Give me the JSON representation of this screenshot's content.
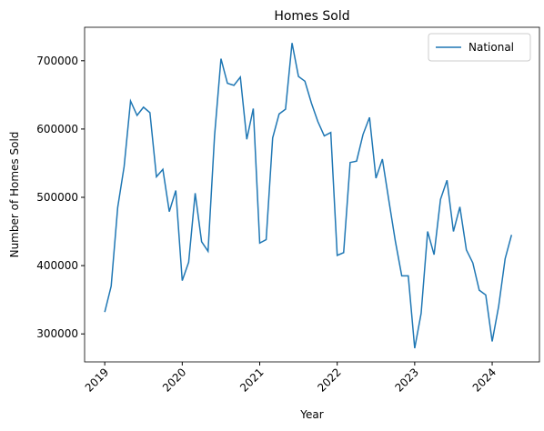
{
  "chart_data": {
    "type": "line",
    "title": "Homes Sold",
    "xlabel": "Year",
    "ylabel": "Number of Homes Sold",
    "x": [
      2019,
      2019.083,
      2019.167,
      2019.25,
      2019.333,
      2019.417,
      2019.5,
      2019.583,
      2019.667,
      2019.75,
      2019.833,
      2019.917,
      2020,
      2020.083,
      2020.167,
      2020.25,
      2020.333,
      2020.417,
      2020.5,
      2020.583,
      2020.667,
      2020.75,
      2020.833,
      2020.917,
      2021,
      2021.083,
      2021.167,
      2021.25,
      2021.333,
      2021.417,
      2021.5,
      2021.583,
      2021.667,
      2021.75,
      2021.833,
      2021.917,
      2022,
      2022.083,
      2022.167,
      2022.25,
      2022.333,
      2022.417,
      2022.5,
      2022.583,
      2022.667,
      2022.75,
      2022.833,
      2022.917,
      2023,
      2023.083,
      2023.167,
      2023.25,
      2023.333,
      2023.417,
      2023.5,
      2023.583,
      2023.667,
      2023.75,
      2023.833,
      2023.917,
      2024,
      2024.083,
      2024.167,
      2024.25
    ],
    "series": [
      {
        "name": "National",
        "color": "#1f77b4",
        "values": [
          332000,
          370000,
          485000,
          545000,
          641000,
          620000,
          632000,
          624000,
          530000,
          541000,
          479000,
          510000,
          378000,
          405000,
          506000,
          435000,
          421000,
          590000,
          703000,
          667000,
          664000,
          676000,
          585000,
          630000,
          433000,
          438000,
          587000,
          622000,
          629000,
          726000,
          677000,
          670000,
          638000,
          611000,
          590000,
          595000,
          415000,
          419000,
          551000,
          553000,
          592000,
          617000,
          528000,
          556000,
          495000,
          436000,
          385000,
          385000,
          279000,
          330000,
          450000,
          416000,
          497000,
          525000,
          450000,
          486000,
          423000,
          404000,
          364000,
          357000,
          289000,
          340000,
          410000,
          445000
        ]
      }
    ],
    "xlim": [
      2018.74,
      2024.61
    ],
    "xticks": [
      2019,
      2020,
      2021,
      2022,
      2023,
      2024
    ],
    "ylim": [
      259000,
      749000
    ],
    "yticks": [
      300000,
      400000,
      500000,
      600000,
      700000
    ],
    "legend": "upper right",
    "grid": false
  }
}
